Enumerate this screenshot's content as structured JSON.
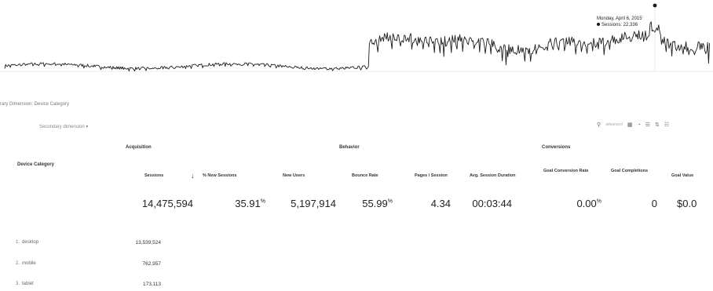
{
  "chart_data": {
    "type": "line",
    "title": "",
    "xlabel": "",
    "ylabel": "",
    "ylim": [
      0,
      30000
    ],
    "series": [
      {
        "name": "Sessions"
      }
    ],
    "tooltip": {
      "date": "Monday, April 6, 2015",
      "series": "Sessions",
      "value": "22,336"
    }
  },
  "tooltip": {
    "date": "Monday, April 6, 2015",
    "value_line": "Sessions: 22,336"
  },
  "breadcrumb": {
    "text": "rary Dimension: Device Category"
  },
  "secondary_dimension": {
    "label": "Secondary dimension ▾"
  },
  "toolbar": {
    "search_placeholder": "advanced"
  },
  "groups": {
    "acquisition": "Acquisition",
    "behavior": "Behavior",
    "conversions": "Conversions"
  },
  "dimension_header": "Device Category",
  "columns": {
    "sessions": "Sessions",
    "new_sessions": "% New Sessions",
    "new_users": "New Users",
    "bounce_rate": "Bounce Rate",
    "pages_session": "Pages / Session",
    "avg_duration": "Avg. Session Duration",
    "goal_conv_rate": "Goal Conversion Rate",
    "goal_completions": "Goal Completions",
    "goal_value": "Goal Value"
  },
  "totals": {
    "sessions": "14,475,594",
    "new_sessions": "35.91",
    "new_sessions_unit": "%",
    "new_users": "5,197,914",
    "bounce_rate": "55.99",
    "bounce_rate_unit": "%",
    "pages_session": "4.34",
    "avg_duration": "00:03:44",
    "goal_conv_rate": "0.00",
    "goal_conv_rate_unit": "%",
    "goal_completions": "0",
    "goal_value": "$0.0"
  },
  "rows": [
    {
      "num": "1.",
      "label": "desktop",
      "sessions": "13,539,524"
    },
    {
      "num": "2.",
      "label": "mobile",
      "sessions": "762,957"
    },
    {
      "num": "3.",
      "label": "tablet",
      "sessions": "173,113"
    }
  ]
}
